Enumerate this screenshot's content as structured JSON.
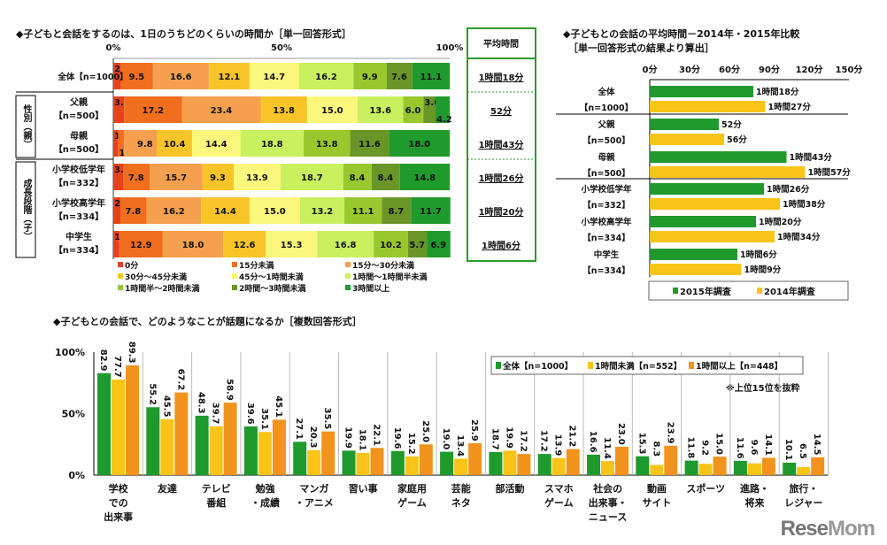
{
  "chart_data": [
    {
      "type": "bar",
      "orientation": "horizontal",
      "stacked": true,
      "title": "◆子どもと会話をするのは、1日のうちどのくらいの時間か［単一回答形式］",
      "xlim": [
        0,
        100
      ],
      "xticks": [
        "0%",
        "50%",
        "100%"
      ],
      "categories": [
        "全体【n=1000】",
        "父親【n=500】",
        "母親【n=500】",
        "小学校低学年【n=332】",
        "小学校高学年【n=334】",
        "中学生【n=334】"
      ],
      "groups": [
        {
          "label": "性別（親）",
          "members": [
            "父親【n=500】",
            "母親【n=500】"
          ]
        },
        {
          "label": "成長段階（子）",
          "members": [
            "小学校低学年【n=332】",
            "小学校高学年【n=334】",
            "中学生【n=334】"
          ]
        }
      ],
      "row_labels": [
        [
          "全体【n=1000】"
        ],
        [
          "父親",
          "【n=500】"
        ],
        [
          "母親",
          "【n=500】"
        ],
        [
          "小学校低学年",
          "【n=332】"
        ],
        [
          "小学校高学年",
          "【n=334】"
        ],
        [
          "中学生",
          "【n=334】"
        ]
      ],
      "series": [
        {
          "name": "0分",
          "color": "#e8401c",
          "values": [
            2.3,
            3.2,
            1.4,
            3.0,
            2.1,
            1.8
          ]
        },
        {
          "name": "15分未満",
          "color": "#f06e1e",
          "values": [
            9.5,
            17.2,
            1.8,
            7.8,
            7.8,
            12.9
          ]
        },
        {
          "name": "15分～30分未満",
          "color": "#f5a04e",
          "values": [
            16.6,
            23.4,
            9.8,
            15.7,
            16.2,
            18.0
          ]
        },
        {
          "name": "30分～45分未満",
          "color": "#f8c428",
          "values": [
            12.1,
            13.8,
            10.4,
            9.3,
            14.4,
            12.6
          ]
        },
        {
          "name": "45分～1時間未満",
          "color": "#fbf77c",
          "values": [
            14.7,
            15.0,
            14.4,
            13.9,
            15.0,
            15.3
          ]
        },
        {
          "name": "1時間～1時間半未満",
          "color": "#c9f05e",
          "values": [
            16.2,
            13.6,
            18.8,
            18.7,
            13.2,
            16.8
          ]
        },
        {
          "name": "1時間半～2時間未満",
          "color": "#98c82e",
          "values": [
            9.9,
            6.0,
            13.8,
            8.4,
            11.1,
            10.2
          ]
        },
        {
          "name": "2時間～3時間未満",
          "color": "#6a9628",
          "values": [
            7.6,
            3.6,
            11.6,
            8.4,
            8.7,
            5.7
          ]
        },
        {
          "name": "3時間以上",
          "color": "#1f9a2c",
          "values": [
            11.1,
            4.2,
            18.0,
            14.8,
            11.7,
            6.9
          ]
        }
      ],
      "average_header": "平均時間",
      "averages": [
        "1時間18分",
        "52分",
        "1時間43分",
        "1時間26分",
        "1時間20分",
        "1時間6分"
      ],
      "legend": "bottom"
    },
    {
      "type": "bar",
      "orientation": "horizontal",
      "title": "◆子どもとの会話の平均時間－2014年・2015年比較",
      "subtitle": "［単一回答形式の結果より算出］",
      "xlim": [
        0,
        150
      ],
      "xticks": [
        "0分",
        "30分",
        "60分",
        "90分",
        "120分",
        "150分"
      ],
      "categories": [
        [
          "全体",
          "【n=1000】"
        ],
        [
          "父親",
          "【n=500】"
        ],
        [
          "母親",
          "【n=500】"
        ],
        [
          "小学校低学年",
          "【n=332】"
        ],
        [
          "小学校高学年",
          "【n=334】"
        ],
        [
          "中学生",
          "【n=334】"
        ]
      ],
      "series": [
        {
          "name": "2015年調査",
          "color": "#1f9a2c",
          "values": [
            78,
            52,
            103,
            86,
            80,
            66
          ],
          "labels": [
            "1時間18分",
            "52分",
            "1時間43分",
            "1時間26分",
            "1時間20分",
            "1時間6分"
          ]
        },
        {
          "name": "2014年調査",
          "color": "#f8c418",
          "values": [
            87,
            56,
            117,
            98,
            94,
            69
          ],
          "labels": [
            "1時間27分",
            "56分",
            "1時間57分",
            "1時間38分",
            "1時間34分",
            "1時間9分"
          ]
        }
      ],
      "legend": "bottom"
    },
    {
      "type": "bar",
      "title": "◆子どもとの会話で、どのようなことが話題になるか［複数回答形式］",
      "note": "※上位15位を抜粋",
      "ylim": [
        0,
        100
      ],
      "yticks": [
        "0%",
        "50%",
        "100%"
      ],
      "categories": [
        [
          "学校",
          "での",
          "出来事"
        ],
        [
          "友達"
        ],
        [
          "テレビ",
          "番組"
        ],
        [
          "勉強",
          "・成績"
        ],
        [
          "マンガ",
          "・アニメ"
        ],
        [
          "習い事"
        ],
        [
          "家庭用",
          "ゲーム"
        ],
        [
          "芸能",
          "ネタ"
        ],
        [
          "部活動"
        ],
        [
          "スマホ",
          "ゲーム"
        ],
        [
          "社会の",
          "出来事・",
          "ニュース"
        ],
        [
          "動画",
          "サイト"
        ],
        [
          "スポーツ"
        ],
        [
          "進路・",
          "将来"
        ],
        [
          "旅行・",
          "レジャー"
        ]
      ],
      "series": [
        {
          "name": "全体【n=1000】",
          "color": "#1f9a2c",
          "values": [
            82.9,
            55.2,
            48.3,
            39.6,
            27.1,
            19.9,
            19.6,
            19.0,
            18.7,
            17.2,
            16.6,
            15.3,
            11.8,
            11.6,
            10.1
          ]
        },
        {
          "name": "1時間未満【n=552】",
          "color": "#f8c418",
          "values": [
            77.7,
            45.5,
            39.7,
            35.1,
            20.3,
            18.1,
            15.2,
            13.4,
            19.9,
            13.9,
            11.4,
            8.3,
            9.2,
            9.6,
            6.5
          ]
        },
        {
          "name": "1時間以上【n=448】",
          "color": "#f2931e",
          "values": [
            89.3,
            67.2,
            58.9,
            45.1,
            35.5,
            22.1,
            25.0,
            25.9,
            17.2,
            21.2,
            23.0,
            23.9,
            15.0,
            14.1,
            14.5
          ]
        }
      ],
      "legend": "top-right"
    }
  ],
  "logo": "ReseMom"
}
